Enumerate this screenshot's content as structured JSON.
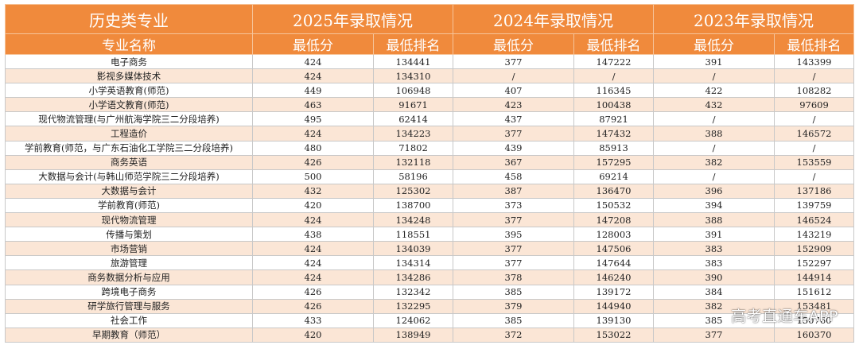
{
  "header": {
    "category": "历史类专业",
    "years": [
      "2025年录取情况",
      "2024年录取情况",
      "2023年录取情况"
    ],
    "major_col": "专业名称",
    "min_score": "最低分",
    "min_rank": "最低排名"
  },
  "rows": [
    [
      "电子商务",
      "424",
      "134441",
      "377",
      "147222",
      "391",
      "143399"
    ],
    [
      "影视多媒体技术",
      "424",
      "134310",
      "/",
      "/",
      "/",
      "/"
    ],
    [
      "小学英语教育(师范)",
      "449",
      "106948",
      "407",
      "116345",
      "422",
      "108282"
    ],
    [
      "小学语文教育(师范)",
      "463",
      "91671",
      "423",
      "100438",
      "432",
      "97609"
    ],
    [
      "现代物流管理(与广州航海学院三二分段培养)",
      "495",
      "62414",
      "437",
      "87921",
      "/",
      "/"
    ],
    [
      "工程造价",
      "424",
      "134223",
      "377",
      "147432",
      "388",
      "146572"
    ],
    [
      "学前教育(师范，与广东石油化工学院三二分段培养)",
      "480",
      "71802",
      "439",
      "85913",
      "/",
      "/"
    ],
    [
      "商务英语",
      "426",
      "132118",
      "367",
      "157295",
      "382",
      "153559"
    ],
    [
      "大数据与会计(与韩山师范学院三二分段培养)",
      "500",
      "58196",
      "458",
      "69214",
      "/",
      "/"
    ],
    [
      "大数据与会计",
      "432",
      "125302",
      "387",
      "136470",
      "396",
      "137186"
    ],
    [
      "学前教育(师范)",
      "420",
      "138700",
      "373",
      "150532",
      "394",
      "139759"
    ],
    [
      "现代物流管理",
      "424",
      "134248",
      "377",
      "147208",
      "388",
      "146524"
    ],
    [
      "传播与策划",
      "438",
      "118551",
      "395",
      "128003",
      "391",
      "143219"
    ],
    [
      "市场营销",
      "424",
      "134039",
      "377",
      "147506",
      "383",
      "152909"
    ],
    [
      "旅游管理",
      "424",
      "134314",
      "377",
      "147644",
      "383",
      "152297"
    ],
    [
      "商务数据分析与应用",
      "424",
      "134286",
      "378",
      "146240",
      "390",
      "144914"
    ],
    [
      "跨境电子商务",
      "426",
      "132342",
      "385",
      "139172",
      "384",
      "151612"
    ],
    [
      "研学旅行管理与服务",
      "426",
      "132295",
      "379",
      "144940",
      "382",
      "153481"
    ],
    [
      "社会工作",
      "433",
      "124062",
      "385",
      "139130",
      "385",
      "150760"
    ],
    [
      "早期教育（师范）",
      "420",
      "138949",
      "372",
      "153022",
      "377",
      "160370"
    ]
  ],
  "watermark": "高考直通车APP"
}
